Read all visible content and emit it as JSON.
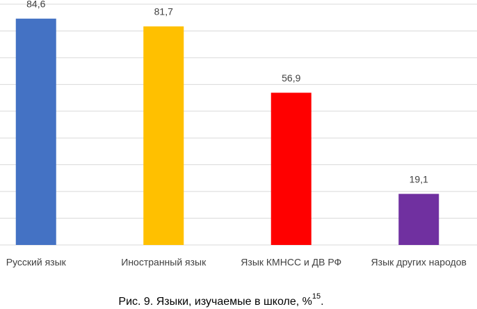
{
  "chart_data": {
    "type": "bar",
    "categories": [
      "Русский язык",
      "Иностранный язык",
      "Язык КМНСС и ДВ РФ",
      "Язык других народов"
    ],
    "values": [
      84.6,
      81.7,
      56.9,
      19.1
    ],
    "value_labels": [
      "84,6",
      "81,7",
      "56,9",
      "19,1"
    ],
    "colors": [
      "#4472c4",
      "#ffc000",
      "#ff0000",
      "#7030a0"
    ],
    "ylim": [
      0,
      90
    ],
    "yticks": [
      0,
      10,
      20,
      30,
      40,
      50,
      60,
      70,
      80,
      90
    ],
    "grid": true,
    "caption": {
      "text": "Рис. 9. Языки, изучаемые в школе, %",
      "footnote": "15",
      "end": "."
    }
  }
}
